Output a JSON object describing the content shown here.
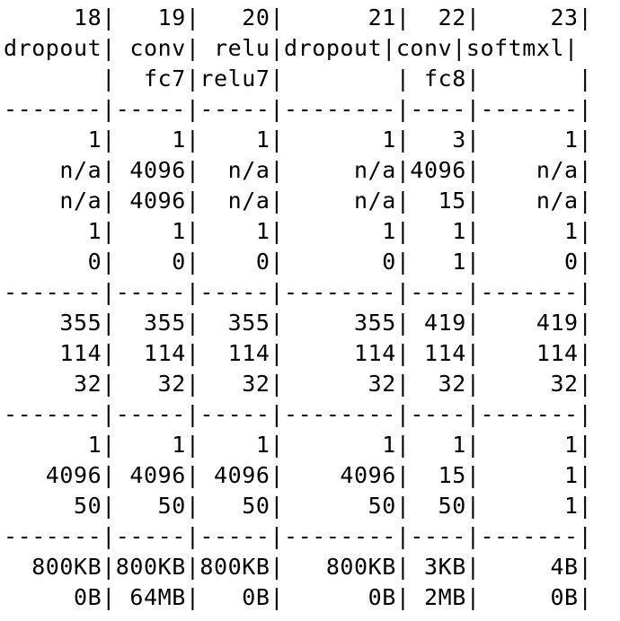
{
  "terminal": {
    "lines": [
      "     18|   19|   20|      21|  22|     23|",
      "dropout| conv| relu|dropout|conv|softmxl|",
      "       |  fc7|relu7|        | fc8|       |",
      "-------|-----|-----|--------|----|-------|",
      "      1|    1|    1|       1|   3|      1|",
      "    n/a| 4096|  n/a|     n/a|4096|    n/a|",
      "    n/a| 4096|  n/a|     n/a|  15|    n/a|",
      "      1|    1|    1|       1|   1|      1|",
      "      0|    0|    0|       0|   1|      0|",
      "-------|-----|-----|--------|----|-------|",
      "    355|  355|  355|     355| 419|    419|",
      "    114|  114|  114|     114| 114|    114|",
      "     32|   32|   32|      32|  32|     32|",
      "-------|-----|-----|--------|----|-------|",
      "      1|    1|    1|       1|   1|      1|",
      "   4096| 4096| 4096|    4096|  15|      1|",
      "     50|   50|   50|      50|  50|      1|",
      "-------|-----|-----|--------|----|-------|",
      "  800KB|800KB|800KB|   800KB| 3KB|     4B|",
      "     0B| 64MB|   0B|      0B| 2MB|     0B|"
    ]
  }
}
